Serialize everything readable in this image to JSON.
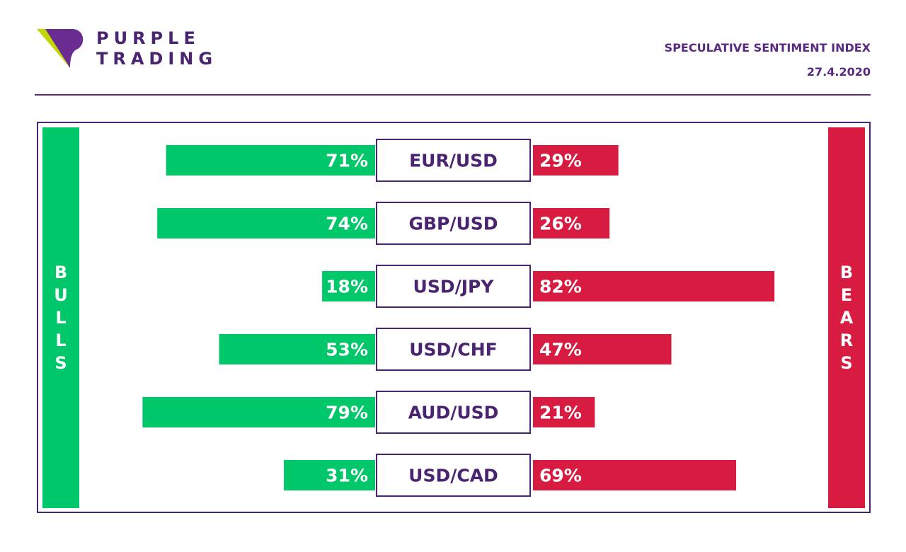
{
  "brand": {
    "line1": "PURPLE",
    "line2": "TRADING",
    "logo_icon": "purple-trading-logo-icon"
  },
  "header": {
    "title": "SPECULATIVE SENTIMENT INDEX",
    "date": "27.4.2020"
  },
  "sidebars": {
    "left_letters": [
      "B",
      "U",
      "L",
      "L",
      "S"
    ],
    "right_letters": [
      "B",
      "E",
      "A",
      "R",
      "S"
    ]
  },
  "colors": {
    "bulls": "#00c86a",
    "bears": "#d81b40",
    "brand": "#4a2470"
  },
  "chart_data": {
    "type": "bar",
    "categories": [
      "EUR/USD",
      "GBP/USD",
      "USD/JPY",
      "USD/CHF",
      "AUD/USD",
      "USD/CAD"
    ],
    "series": [
      {
        "name": "BULLS",
        "values": [
          71,
          74,
          18,
          53,
          79,
          31
        ]
      },
      {
        "name": "BEARS",
        "values": [
          29,
          26,
          82,
          47,
          21,
          69
        ]
      }
    ],
    "value_labels": {
      "bulls": [
        "71%",
        "74%",
        "18%",
        "53%",
        "79%",
        "31%"
      ],
      "bears": [
        "29%",
        "26%",
        "82%",
        "47%",
        "21%",
        "69%"
      ]
    },
    "title": "SPECULATIVE SENTIMENT INDEX",
    "xlim": [
      0,
      100
    ],
    "grid": false
  }
}
